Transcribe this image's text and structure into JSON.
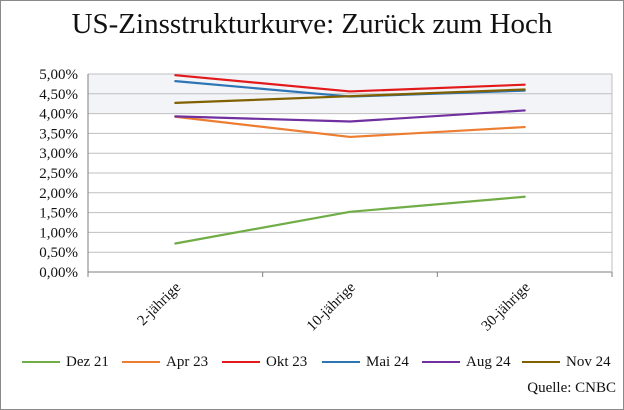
{
  "chart_data": {
    "type": "line",
    "title": "US-Zinsstrukturkurve: Zurück zum Hoch",
    "categories": [
      "2-jährige",
      "10-jährige",
      "30-jährige"
    ],
    "ylim": [
      0,
      5
    ],
    "yticks": [
      "0,00%",
      "0,50%",
      "1,00%",
      "1,50%",
      "2,00%",
      "2,50%",
      "3,00%",
      "3,50%",
      "4,00%",
      "4,50%",
      "5,00%"
    ],
    "grid": true,
    "legend_position": "bottom",
    "series": [
      {
        "name": "Dez 21",
        "color": "#70ad47",
        "values": [
          0.72,
          1.52,
          1.9
        ]
      },
      {
        "name": "Apr 23",
        "color": "#ed7d31",
        "values": [
          3.92,
          3.41,
          3.66
        ]
      },
      {
        "name": "Okt 23",
        "color": "#e31a1c",
        "values": [
          4.97,
          4.56,
          4.73
        ]
      },
      {
        "name": "Mai 24",
        "color": "#2e75b6",
        "values": [
          4.82,
          4.43,
          4.58
        ]
      },
      {
        "name": "Aug 24",
        "color": "#7030a0",
        "values": [
          3.93,
          3.8,
          4.08
        ]
      },
      {
        "name": "Nov 24",
        "color": "#806000",
        "values": [
          4.27,
          4.44,
          4.61
        ]
      }
    ],
    "source": "Quelle: CNBC"
  }
}
